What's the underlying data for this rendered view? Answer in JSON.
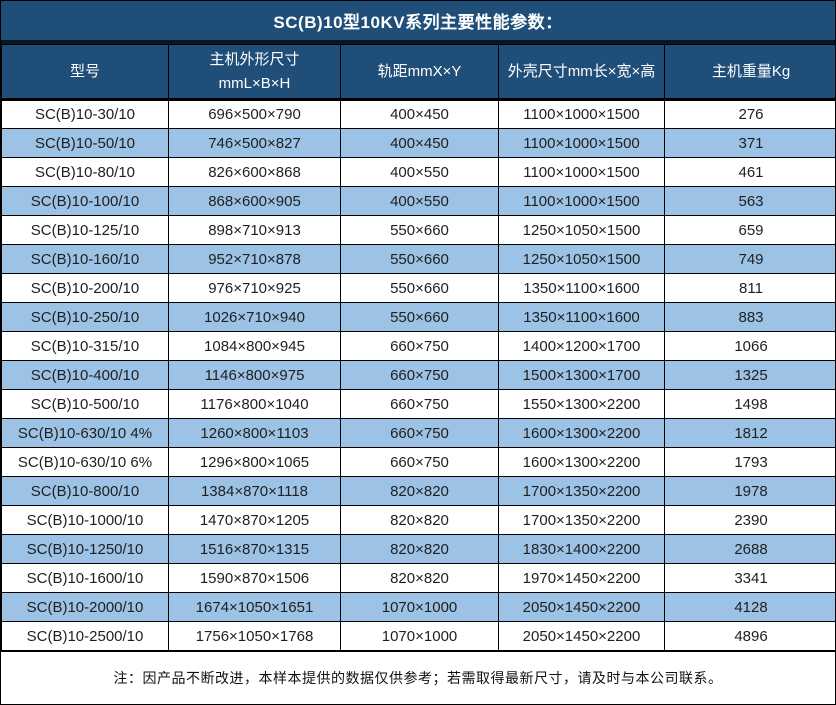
{
  "title": "SC(B)10型10KV系列主要性能参数：",
  "table": {
    "columns": [
      {
        "id": "model",
        "lines": [
          "型号"
        ]
      },
      {
        "id": "host-dimensions",
        "lines": [
          "主机外形尺寸",
          "mmL×B×H"
        ]
      },
      {
        "id": "rail-gauge",
        "lines": [
          "轨距mmX×Y"
        ]
      },
      {
        "id": "enclosure-size",
        "lines": [
          "外壳尺寸mm长×宽×高"
        ]
      },
      {
        "id": "host-weight",
        "lines": [
          "主机重量Kg"
        ]
      }
    ],
    "rows": [
      [
        "SC(B)10-30/10",
        "696×500×790",
        "400×450",
        "1100×1000×1500",
        "276"
      ],
      [
        "SC(B)10-50/10",
        "746×500×827",
        "400×450",
        "1100×1000×1500",
        "371"
      ],
      [
        "SC(B)10-80/10",
        "826×600×868",
        "400×550",
        "1100×1000×1500",
        "461"
      ],
      [
        "SC(B)10-100/10",
        "868×600×905",
        "400×550",
        "1100×1000×1500",
        "563"
      ],
      [
        "SC(B)10-125/10",
        "898×710×913",
        "550×660",
        "1250×1050×1500",
        "659"
      ],
      [
        "SC(B)10-160/10",
        "952×710×878",
        "550×660",
        "1250×1050×1500",
        "749"
      ],
      [
        "SC(B)10-200/10",
        "976×710×925",
        "550×660",
        "1350×1100×1600",
        "811"
      ],
      [
        "SC(B)10-250/10",
        "1026×710×940",
        "550×660",
        "1350×1100×1600",
        "883"
      ],
      [
        "SC(B)10-315/10",
        "1084×800×945",
        "660×750",
        "1400×1200×1700",
        "1066"
      ],
      [
        "SC(B)10-400/10",
        "1146×800×975",
        "660×750",
        "1500×1300×1700",
        "1325"
      ],
      [
        "SC(B)10-500/10",
        "1176×800×1040",
        "660×750",
        "1550×1300×2200",
        "1498"
      ],
      [
        "SC(B)10-630/10 4%",
        "1260×800×1103",
        "660×750",
        "1600×1300×2200",
        "1812"
      ],
      [
        "SC(B)10-630/10 6%",
        "1296×800×1065",
        "660×750",
        "1600×1300×2200",
        "1793"
      ],
      [
        "SC(B)10-800/10",
        "1384×870×1118",
        "820×820",
        "1700×1350×2200",
        "1978"
      ],
      [
        "SC(B)10-1000/10",
        "1470×870×1205",
        "820×820",
        "1700×1350×2200",
        "2390"
      ],
      [
        "SC(B)10-1250/10",
        "1516×870×1315",
        "820×820",
        "1830×1400×2200",
        "2688"
      ],
      [
        "SC(B)10-1600/10",
        "1590×870×1506",
        "820×820",
        "1970×1450×2200",
        "3341"
      ],
      [
        "SC(B)10-2000/10",
        "1674×1050×1651",
        "1070×1000",
        "2050×1450×2200",
        "4128"
      ],
      [
        "SC(B)10-2500/10",
        "1756×1050×1768",
        "1070×1000",
        "2050×1450×2200",
        "4896"
      ]
    ]
  },
  "note": "注：因产品不断改进，本样本提供的数据仅供参考；若需取得最新尺寸，请及时与本公司联系。",
  "colors": {
    "header_bg": "#1F4E79",
    "stripe_bg": "#9CC3E5",
    "border": "#000000",
    "header_text": "#FFFFFF",
    "body_text": "#1F1F1F"
  }
}
